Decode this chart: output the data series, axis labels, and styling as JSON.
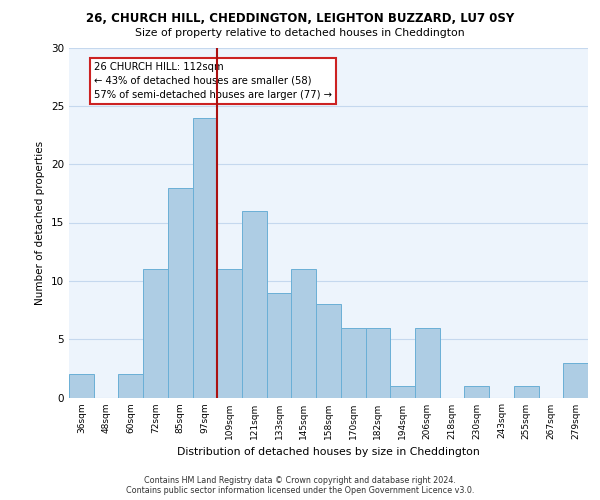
{
  "title1": "26, CHURCH HILL, CHEDDINGTON, LEIGHTON BUZZARD, LU7 0SY",
  "title2": "Size of property relative to detached houses in Cheddington",
  "xlabel": "Distribution of detached houses by size in Cheddington",
  "ylabel": "Number of detached properties",
  "bin_labels": [
    "36sqm",
    "48sqm",
    "60sqm",
    "72sqm",
    "85sqm",
    "97sqm",
    "109sqm",
    "121sqm",
    "133sqm",
    "145sqm",
    "158sqm",
    "170sqm",
    "182sqm",
    "194sqm",
    "206sqm",
    "218sqm",
    "230sqm",
    "243sqm",
    "255sqm",
    "267sqm",
    "279sqm"
  ],
  "bar_heights": [
    2,
    0,
    2,
    11,
    18,
    24,
    11,
    16,
    9,
    11,
    8,
    6,
    6,
    1,
    6,
    0,
    1,
    0,
    1,
    0,
    3
  ],
  "bar_color": "#aecde4",
  "bar_edge_color": "#6aafd6",
  "grid_color": "#c5d8ee",
  "bg_color": "#edf4fc",
  "vline_x": 6,
  "vline_color": "#aa1111",
  "annotation_title": "26 CHURCH HILL: 112sqm",
  "annotation_line1": "← 43% of detached houses are smaller (58)",
  "annotation_line2": "57% of semi-detached houses are larger (77) →",
  "annotation_box_color": "#ffffff",
  "annotation_border_color": "#cc2222",
  "ylim": [
    0,
    30
  ],
  "yticks": [
    0,
    5,
    10,
    15,
    20,
    25,
    30
  ],
  "footer1": "Contains HM Land Registry data © Crown copyright and database right 2024.",
  "footer2": "Contains public sector information licensed under the Open Government Licence v3.0."
}
